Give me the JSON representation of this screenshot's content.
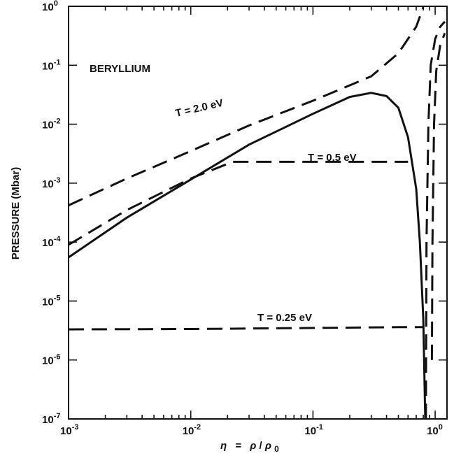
{
  "chart_data": {
    "type": "line",
    "title": "",
    "annotation": "BERYLLIUM",
    "xlabel": "η = ρ/ρ0",
    "xlabel_parts": {
      "eta": "η",
      "eq": "=",
      "rho": "ρ",
      "slash": "/",
      "rho0": "ρ",
      "sub0": "0"
    },
    "ylabel": "PRESSURE (Mbar)",
    "x_scale": "log",
    "y_scale": "log",
    "xlim": [
      0.001,
      1.25
    ],
    "ylim": [
      1e-07,
      1
    ],
    "x_ticks": [
      {
        "value": 0.001,
        "base": "10",
        "exp": "-3"
      },
      {
        "value": 0.01,
        "base": "10",
        "exp": "-2"
      },
      {
        "value": 0.1,
        "base": "10",
        "exp": "-1"
      },
      {
        "value": 1,
        "base": "10",
        "exp": "0"
      }
    ],
    "y_ticks": [
      {
        "value": 1,
        "base": "10",
        "exp": "0"
      },
      {
        "value": 0.1,
        "base": "10",
        "exp": "-1"
      },
      {
        "value": 0.01,
        "base": "10",
        "exp": "-2"
      },
      {
        "value": 0.001,
        "base": "10",
        "exp": "-3"
      },
      {
        "value": 0.0001,
        "base": "10",
        "exp": "-4"
      },
      {
        "value": 1e-05,
        "base": "10",
        "exp": "-5"
      },
      {
        "value": 1e-06,
        "base": "10",
        "exp": "-6"
      },
      {
        "value": 1e-07,
        "base": "10",
        "exp": "-7"
      }
    ],
    "grid": false,
    "series": [
      {
        "style": "solid",
        "points": [
          [
            0.001,
            5.5e-05
          ],
          [
            0.003,
            0.00026
          ],
          [
            0.01,
            0.00115
          ],
          [
            0.03,
            0.0045
          ],
          [
            0.1,
            0.015
          ],
          [
            0.2,
            0.029
          ],
          [
            0.3,
            0.034
          ],
          [
            0.4,
            0.03
          ],
          [
            0.5,
            0.019
          ],
          [
            0.6,
            0.006
          ],
          [
            0.7,
            0.0008
          ],
          [
            0.75,
            0.0001
          ],
          [
            0.8,
            5e-06
          ],
          [
            0.83,
            1e-07
          ]
        ]
      },
      {
        "name": "T = 2.0 eV",
        "style": "dashed",
        "points": [
          [
            0.001,
            0.00042
          ],
          [
            0.003,
            0.0012
          ],
          [
            0.01,
            0.0035
          ],
          [
            0.03,
            0.0095
          ],
          [
            0.1,
            0.025
          ],
          [
            0.3,
            0.065
          ],
          [
            0.5,
            0.16
          ],
          [
            0.7,
            0.45
          ],
          [
            0.8,
            0.97
          ]
        ]
      },
      {
        "name": "T = 0.5 eV",
        "style": "dashed",
        "points": [
          [
            0.001,
            9e-05
          ],
          [
            0.003,
            0.00035
          ],
          [
            0.01,
            0.0012
          ],
          [
            0.022,
            0.0023
          ],
          [
            0.1,
            0.0023
          ],
          [
            0.3,
            0.0023
          ],
          [
            0.6,
            0.0023
          ]
        ]
      },
      {
        "name": "T = 0.25 eV",
        "style": "dashed",
        "points": [
          [
            0.001,
            3.3e-06
          ],
          [
            0.01,
            3.35e-06
          ],
          [
            0.1,
            3.5e-06
          ],
          [
            0.5,
            3.6e-06
          ],
          [
            0.8,
            3.6e-06
          ]
        ]
      },
      {
        "style": "dashed",
        "points": [
          [
            0.84,
            1e-07
          ],
          [
            0.85,
            0.0001
          ],
          [
            0.88,
            0.01
          ],
          [
            0.92,
            0.1
          ],
          [
            1.0,
            0.28
          ],
          [
            1.1,
            0.45
          ],
          [
            1.2,
            0.55
          ]
        ]
      },
      {
        "style": "dashed",
        "points": [
          [
            0.94,
            1e-06
          ],
          [
            0.95,
            0.0001
          ],
          [
            0.98,
            0.01
          ],
          [
            1.02,
            0.08
          ],
          [
            1.1,
            0.22
          ],
          [
            1.2,
            0.35
          ]
        ]
      }
    ]
  }
}
